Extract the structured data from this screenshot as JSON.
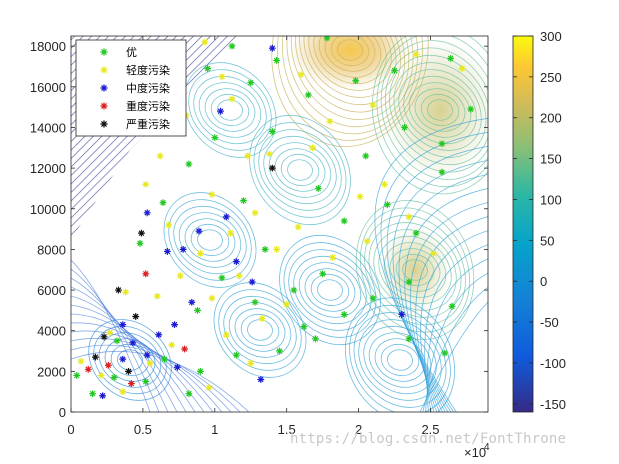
{
  "chart_data": {
    "type": "scatter",
    "xlim": [
      0,
      29000
    ],
    "ylim": [
      0,
      18500
    ],
    "x_ticks": [
      {
        "value": 0,
        "label": "0"
      },
      {
        "value": 5000,
        "label": "0.5"
      },
      {
        "value": 10000,
        "label": "1"
      },
      {
        "value": 15000,
        "label": "1.5"
      },
      {
        "value": 20000,
        "label": "2"
      },
      {
        "value": 25000,
        "label": "2.5"
      }
    ],
    "x_exponent": {
      "base": "×10",
      "power": "4"
    },
    "y_ticks": [
      {
        "value": 0,
        "label": "0"
      },
      {
        "value": 2000,
        "label": "2000"
      },
      {
        "value": 4000,
        "label": "4000"
      },
      {
        "value": 6000,
        "label": "6000"
      },
      {
        "value": 8000,
        "label": "8000"
      },
      {
        "value": 10000,
        "label": "10000"
      },
      {
        "value": 12000,
        "label": "12000"
      },
      {
        "value": 14000,
        "label": "14000"
      },
      {
        "value": 16000,
        "label": "16000"
      },
      {
        "value": 18000,
        "label": "18000"
      }
    ],
    "colorbar": {
      "min": -160,
      "max": 300,
      "ticks": [
        {
          "value": 300,
          "label": "300"
        },
        {
          "value": 250,
          "label": "250"
        },
        {
          "value": 200,
          "label": "200"
        },
        {
          "value": 150,
          "label": "150"
        },
        {
          "value": 100,
          "label": "100"
        },
        {
          "value": 50,
          "label": "50"
        },
        {
          "value": 0,
          "label": "0"
        },
        {
          "value": -50,
          "label": "-50"
        },
        {
          "value": -100,
          "label": "-100"
        },
        {
          "value": -150,
          "label": "-150"
        }
      ]
    },
    "legend_position": "top-left",
    "grid": false,
    "series": [
      {
        "name": "优",
        "color": "#22c822",
        "marker": "asterisk",
        "points": [
          [
            400,
            1800
          ],
          [
            1500,
            900
          ],
          [
            3000,
            1700
          ],
          [
            5200,
            1500
          ],
          [
            6500,
            2600
          ],
          [
            8200,
            900
          ],
          [
            9000,
            2000
          ],
          [
            11500,
            2800
          ],
          [
            14500,
            3000
          ],
          [
            17000,
            3600
          ],
          [
            19000,
            4800
          ],
          [
            17500,
            6800
          ],
          [
            21000,
            5600
          ],
          [
            23500,
            6400
          ],
          [
            26500,
            5200
          ],
          [
            24000,
            8800
          ],
          [
            22000,
            10200
          ],
          [
            19000,
            9400
          ],
          [
            17200,
            11000
          ],
          [
            20500,
            12600
          ],
          [
            23200,
            14000
          ],
          [
            25800,
            13200
          ],
          [
            27800,
            14900
          ],
          [
            19800,
            16300
          ],
          [
            16500,
            15600
          ],
          [
            14300,
            17300
          ],
          [
            12500,
            16200
          ],
          [
            10000,
            13500
          ],
          [
            8200,
            12200
          ],
          [
            12000,
            10400
          ],
          [
            13500,
            8000
          ],
          [
            10500,
            6600
          ],
          [
            8800,
            5000
          ],
          [
            15500,
            6000
          ],
          [
            16200,
            4200
          ],
          [
            23500,
            3600
          ],
          [
            26000,
            2900
          ],
          [
            6400,
            10300
          ],
          [
            7000,
            14200
          ],
          [
            5800,
            17600
          ],
          [
            11200,
            18000
          ],
          [
            17800,
            18400
          ],
          [
            22500,
            16800
          ],
          [
            26400,
            17400
          ],
          [
            4800,
            8300
          ],
          [
            3200,
            3500
          ],
          [
            12800,
            5400
          ],
          [
            25800,
            11800
          ],
          [
            14000,
            13800
          ],
          [
            9500,
            16900
          ]
        ]
      },
      {
        "name": "轻度污染",
        "color": "#e8e820",
        "marker": "asterisk",
        "points": [
          [
            700,
            2500
          ],
          [
            2100,
            1800
          ],
          [
            3600,
            1000
          ],
          [
            5500,
            2400
          ],
          [
            7000,
            3300
          ],
          [
            9600,
            1200
          ],
          [
            10800,
            3800
          ],
          [
            12500,
            2400
          ],
          [
            13300,
            4600
          ],
          [
            15000,
            5300
          ],
          [
            6000,
            5700
          ],
          [
            7600,
            6700
          ],
          [
            9000,
            7800
          ],
          [
            11100,
            8800
          ],
          [
            12800,
            9800
          ],
          [
            9800,
            10700
          ],
          [
            6800,
            9200
          ],
          [
            5200,
            11200
          ],
          [
            6200,
            12600
          ],
          [
            8000,
            14600
          ],
          [
            11200,
            15400
          ],
          [
            13800,
            12700
          ],
          [
            15800,
            9100
          ],
          [
            18200,
            7600
          ],
          [
            20600,
            8400
          ],
          [
            21800,
            11200
          ],
          [
            23500,
            9600
          ],
          [
            25200,
            7800
          ],
          [
            18000,
            14300
          ],
          [
            16000,
            16600
          ],
          [
            21000,
            15100
          ],
          [
            24000,
            17600
          ],
          [
            27200,
            16900
          ],
          [
            7500,
            17400
          ],
          [
            9300,
            18200
          ],
          [
            3800,
            5900
          ],
          [
            2700,
            3900
          ],
          [
            9800,
            5600
          ],
          [
            16800,
            13000
          ],
          [
            20100,
            10600
          ],
          [
            11700,
            6700
          ],
          [
            14300,
            8000
          ],
          [
            6800,
            15600
          ],
          [
            10500,
            16500
          ],
          [
            12300,
            12600
          ]
        ]
      },
      {
        "name": "中度污染",
        "color": "#1a1ad2",
        "marker": "asterisk",
        "points": [
          [
            2200,
            800
          ],
          [
            3600,
            2600
          ],
          [
            4300,
            3400
          ],
          [
            5300,
            2800
          ],
          [
            6100,
            3800
          ],
          [
            7200,
            4300
          ],
          [
            8400,
            5400
          ],
          [
            7800,
            8000
          ],
          [
            8900,
            8900
          ],
          [
            10800,
            9600
          ],
          [
            11500,
            7400
          ],
          [
            6700,
            7900
          ],
          [
            5300,
            9800
          ],
          [
            3600,
            4300
          ],
          [
            12600,
            6400
          ],
          [
            10400,
            14800
          ],
          [
            14000,
            17900
          ],
          [
            23000,
            4800
          ],
          [
            13200,
            1600
          ],
          [
            7400,
            2200
          ]
        ]
      },
      {
        "name": "重度污染",
        "color": "#dc1e1e",
        "marker": "asterisk",
        "points": [
          [
            1200,
            2100
          ],
          [
            2600,
            2300
          ],
          [
            4200,
            1400
          ],
          [
            5200,
            6800
          ],
          [
            7900,
            3100
          ]
        ]
      },
      {
        "name": "严重污染",
        "color": "#111111",
        "marker": "asterisk",
        "points": [
          [
            1700,
            2700
          ],
          [
            2300,
            3700
          ],
          [
            3300,
            6000
          ],
          [
            4500,
            4700
          ],
          [
            4900,
            8800
          ],
          [
            4000,
            2000
          ],
          [
            14000,
            12000
          ]
        ]
      }
    ]
  }
}
